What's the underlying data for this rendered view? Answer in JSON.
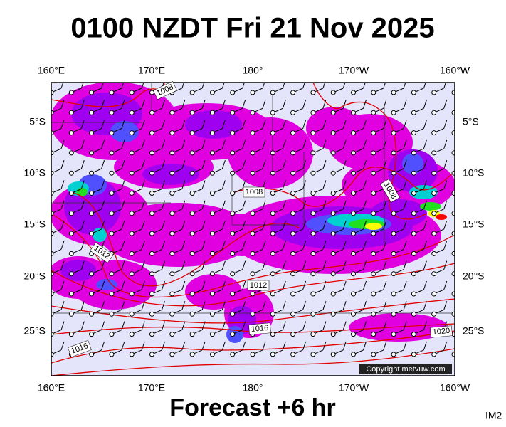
{
  "title": "0100 NZDT Fri 21 Nov 2025",
  "top_labels": [
    "160°E",
    "170°E",
    "180°",
    "170°W",
    "160°W"
  ],
  "bottom_labels": [
    "160°E",
    "170°E",
    "180°",
    "170°W",
    "160°W"
  ],
  "left_labels": [
    "5°S",
    "10°S",
    "15°S",
    "20°S",
    "25°S"
  ],
  "right_labels": [
    "5°S",
    "10°S",
    "15°S",
    "20°S",
    "25°S"
  ],
  "isobar_labels": [
    "1008",
    "1008",
    "1008",
    "1012",
    "1012",
    "1016",
    "1016",
    "1020"
  ],
  "copyright": "Copyright metvuw.com",
  "forecast": "Forecast +6 hr",
  "code": "IM2"
}
